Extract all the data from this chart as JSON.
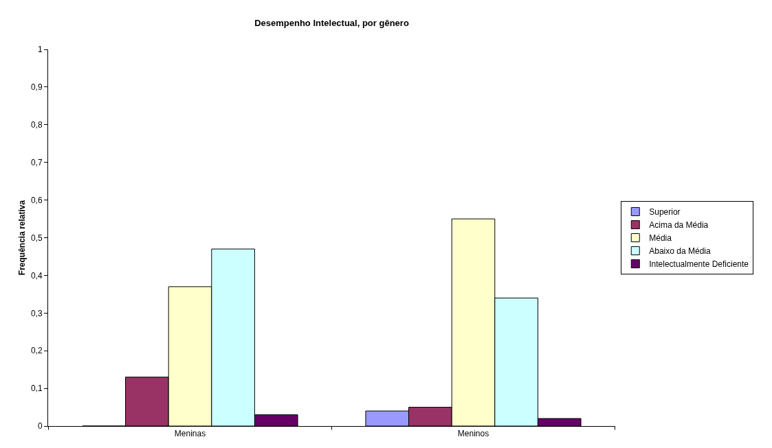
{
  "chart_data": {
    "type": "bar",
    "title": "Desempenho Intelectual, por gênero",
    "ylabel": "Frequência relativa",
    "categories": [
      "Meninas",
      "Meninos"
    ],
    "series": [
      {
        "name": "Superior",
        "color": "#9999ff",
        "values": [
          0,
          0.04
        ]
      },
      {
        "name": "Acima da Média",
        "color": "#993366",
        "values": [
          0.13,
          0.05
        ]
      },
      {
        "name": "Média",
        "color": "#ffffcc",
        "values": [
          0.37,
          0.55
        ]
      },
      {
        "name": "Abaixo da Média",
        "color": "#ccffff",
        "values": [
          0.47,
          0.34
        ]
      },
      {
        "name": "Intelectualmente Deficiente",
        "color": "#660066",
        "values": [
          0.03,
          0.02
        ]
      }
    ],
    "ylim": [
      0,
      1
    ],
    "yticks": [
      0,
      {
        "value": 0.1,
        "label": "0,1"
      },
      {
        "value": 0.2,
        "label": "0,2"
      },
      {
        "value": 0.3,
        "label": "0,3"
      },
      {
        "value": 0.4,
        "label": "0,4"
      },
      {
        "value": 0.5,
        "label": "0,5"
      },
      {
        "value": 0.6,
        "label": "0,6"
      },
      {
        "value": 0.7,
        "label": "0,7"
      },
      {
        "value": 0.8,
        "label": "0,8"
      },
      {
        "value": 0.9,
        "label": "0,9"
      },
      1
    ],
    "grid": false,
    "legend": "right"
  }
}
